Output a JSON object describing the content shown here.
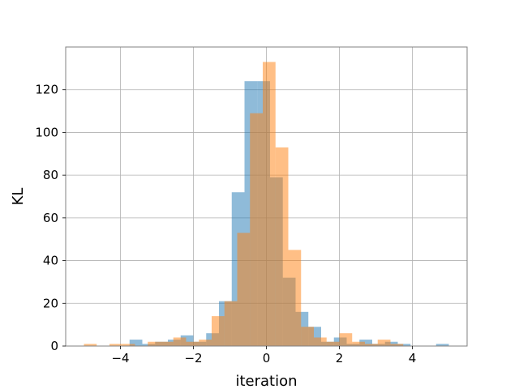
{
  "chart_data": {
    "type": "bar",
    "xlabel": "iteration",
    "ylabel": "KL",
    "xlim": [
      -5.5,
      5.5
    ],
    "ylim": [
      0,
      140
    ],
    "grid": true,
    "xticks": [
      -4,
      -2,
      0,
      2,
      4
    ],
    "yticks": [
      0,
      20,
      40,
      60,
      80,
      100,
      120
    ],
    "series": [
      {
        "color": "#1f77b4",
        "opacity": 0.5,
        "bins": [
          {
            "x0": -3.75,
            "x1": -3.4,
            "value": 3
          },
          {
            "x0": -3.4,
            "x1": -3.05,
            "value": 1
          },
          {
            "x0": -3.05,
            "x1": -2.7,
            "value": 2
          },
          {
            "x0": -2.7,
            "x1": -2.35,
            "value": 3
          },
          {
            "x0": -2.35,
            "x1": -2.0,
            "value": 5
          },
          {
            "x0": -2.0,
            "x1": -1.65,
            "value": 2
          },
          {
            "x0": -1.65,
            "x1": -1.3,
            "value": 6
          },
          {
            "x0": -1.3,
            "x1": -0.95,
            "value": 21
          },
          {
            "x0": -0.95,
            "x1": -0.6,
            "value": 72
          },
          {
            "x0": -0.6,
            "x1": -0.25,
            "value": 124
          },
          {
            "x0": -0.25,
            "x1": 0.1,
            "value": 124
          },
          {
            "x0": 0.1,
            "x1": 0.45,
            "value": 79
          },
          {
            "x0": 0.45,
            "x1": 0.8,
            "value": 32
          },
          {
            "x0": 0.8,
            "x1": 1.15,
            "value": 16
          },
          {
            "x0": 1.15,
            "x1": 1.5,
            "value": 9
          },
          {
            "x0": 1.5,
            "x1": 1.85,
            "value": 2
          },
          {
            "x0": 1.85,
            "x1": 2.2,
            "value": 4
          },
          {
            "x0": 2.2,
            "x1": 2.55,
            "value": 1
          },
          {
            "x0": 2.55,
            "x1": 2.9,
            "value": 3
          },
          {
            "x0": 2.9,
            "x1": 3.25,
            "value": 1
          },
          {
            "x0": 3.25,
            "x1": 3.6,
            "value": 2
          },
          {
            "x0": 3.6,
            "x1": 3.95,
            "value": 1
          },
          {
            "x0": 4.65,
            "x1": 5.0,
            "value": 1
          }
        ]
      },
      {
        "color": "#ff7f0e",
        "opacity": 0.5,
        "bins": [
          {
            "x0": -5.0,
            "x1": -4.65,
            "value": 1
          },
          {
            "x0": -4.3,
            "x1": -3.95,
            "value": 1
          },
          {
            "x0": -3.95,
            "x1": -3.6,
            "value": 1
          },
          {
            "x0": -3.25,
            "x1": -2.9,
            "value": 2
          },
          {
            "x0": -2.9,
            "x1": -2.55,
            "value": 2
          },
          {
            "x0": -2.55,
            "x1": -2.2,
            "value": 4
          },
          {
            "x0": -2.2,
            "x1": -1.85,
            "value": 2
          },
          {
            "x0": -1.85,
            "x1": -1.5,
            "value": 3
          },
          {
            "x0": -1.5,
            "x1": -1.15,
            "value": 14
          },
          {
            "x0": -1.15,
            "x1": -0.8,
            "value": 21
          },
          {
            "x0": -0.8,
            "x1": -0.45,
            "value": 53
          },
          {
            "x0": -0.45,
            "x1": -0.1,
            "value": 109
          },
          {
            "x0": -0.1,
            "x1": 0.25,
            "value": 133
          },
          {
            "x0": 0.25,
            "x1": 0.6,
            "value": 93
          },
          {
            "x0": 0.6,
            "x1": 0.95,
            "value": 45
          },
          {
            "x0": 0.95,
            "x1": 1.3,
            "value": 9
          },
          {
            "x0": 1.3,
            "x1": 1.65,
            "value": 4
          },
          {
            "x0": 1.65,
            "x1": 2.0,
            "value": 2
          },
          {
            "x0": 2.0,
            "x1": 2.35,
            "value": 6
          },
          {
            "x0": 2.35,
            "x1": 2.7,
            "value": 2
          },
          {
            "x0": 2.7,
            "x1": 3.05,
            "value": 1
          },
          {
            "x0": 3.05,
            "x1": 3.4,
            "value": 3
          },
          {
            "x0": 3.4,
            "x1": 3.75,
            "value": 1
          }
        ]
      }
    ]
  }
}
